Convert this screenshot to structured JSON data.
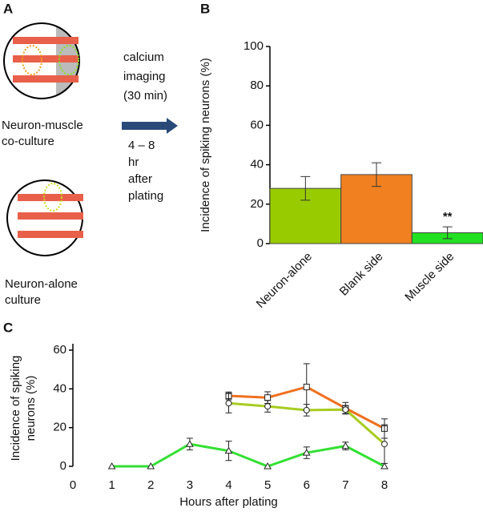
{
  "panel_a": {
    "label": "A",
    "coculture_label": [
      "Neuron-muscle",
      "co-culture"
    ],
    "alone_label": [
      "Neuron-alone",
      "culture"
    ],
    "imaging_label": [
      "calcium",
      "imaging",
      "(30 min)"
    ],
    "time_label": [
      "4 – 8",
      "hr",
      "after",
      "plating"
    ]
  },
  "chart_data": [
    {
      "type": "bar",
      "panel": "B",
      "ylabel": "Incidence of spiking neurons (%)",
      "categories": [
        "Neuron-alone",
        "Blank side",
        "Muscle side"
      ],
      "values": [
        28,
        35,
        5.5
      ],
      "errors": [
        6,
        6,
        3
      ],
      "colors": [
        "#99cc00",
        "#f08020",
        "#22e022"
      ],
      "annotations": [
        null,
        null,
        "**"
      ],
      "ylim": [
        0,
        100
      ],
      "yticks": [
        0,
        20,
        40,
        60,
        80,
        100
      ]
    },
    {
      "type": "line",
      "panel": "C",
      "ylabel": [
        "Incidence of spiking",
        "neurons (%)"
      ],
      "xlabel": "Hours after plating",
      "x": [
        1,
        2,
        3,
        4,
        5,
        6,
        7,
        8
      ],
      "series": [
        {
          "color": "#f07020",
          "marker": "square",
          "values": [
            null,
            null,
            null,
            36.4,
            35.5,
            41,
            30,
            19.5
          ],
          "errors": [
            null,
            null,
            null,
            2,
            3,
            12,
            3,
            5
          ]
        },
        {
          "color": "#a8cc20",
          "marker": "circle",
          "values": [
            null,
            null,
            null,
            32.6,
            31,
            29,
            29.3,
            11.5
          ],
          "errors": [
            null,
            null,
            null,
            5,
            3,
            3,
            2,
            10
          ]
        },
        {
          "color": "#33e033",
          "marker": "triangle",
          "values": [
            0,
            0,
            11.5,
            8,
            0,
            7,
            10.5,
            0
          ],
          "errors": [
            0,
            0,
            3,
            5,
            0,
            3,
            2,
            0
          ]
        }
      ],
      "xlim": [
        0,
        8
      ],
      "xticks": [
        0,
        1,
        2,
        3,
        4,
        5,
        6,
        7,
        8
      ],
      "ylim": [
        0,
        60
      ],
      "yticks": [
        0,
        20,
        40,
        60
      ]
    }
  ]
}
